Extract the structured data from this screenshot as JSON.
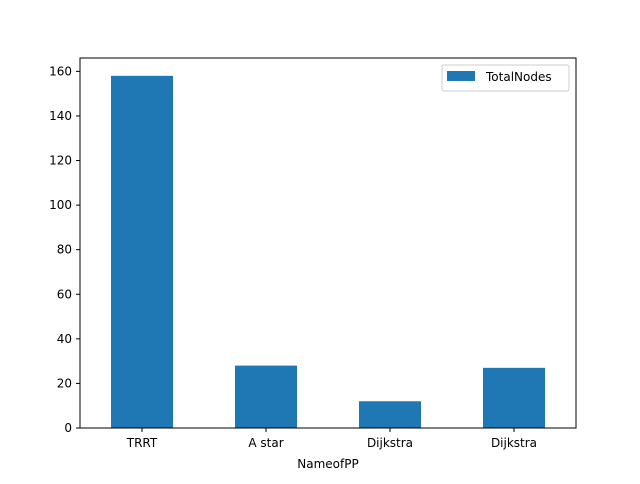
{
  "chart_data": {
    "type": "bar",
    "categories": [
      "TRRT",
      "A star",
      "Dijkstra",
      "Dijkstra"
    ],
    "series": [
      {
        "name": "TotalNodes",
        "values": [
          158,
          28,
          12,
          27
        ],
        "color": "#1f77b4"
      }
    ],
    "xlabel": "NameofPP",
    "ylabel": "",
    "ylim": [
      0,
      166
    ],
    "yticks": [
      0,
      20,
      40,
      60,
      80,
      100,
      120,
      140,
      160
    ],
    "grid": false,
    "legend_position": "top-right"
  }
}
